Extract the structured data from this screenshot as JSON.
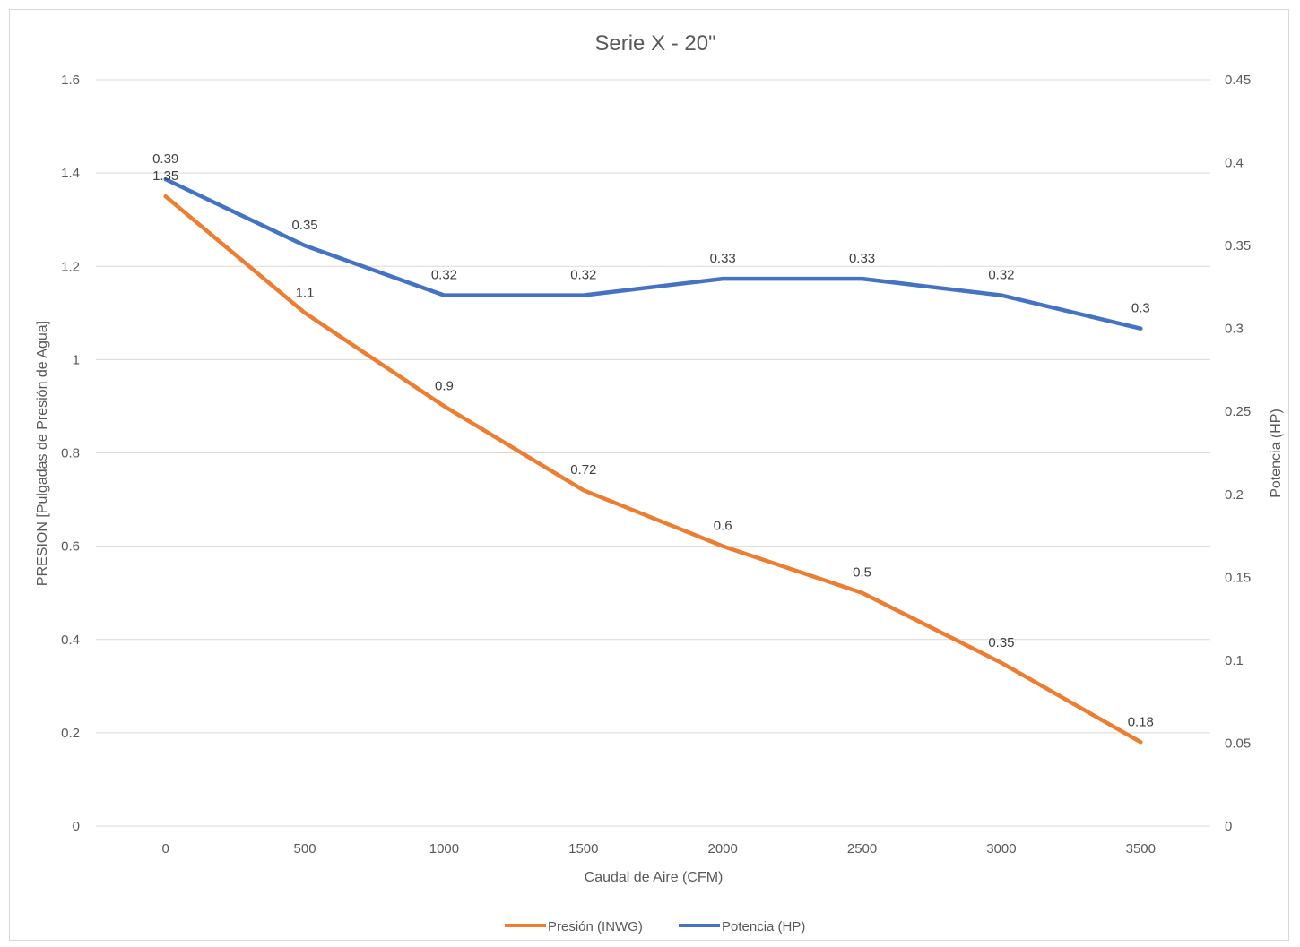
{
  "chart_data": {
    "type": "line",
    "title": "Serie X - 20\"",
    "xlabel": "Caudal de Aire (CFM)",
    "ylabel": "PRESION [Pulgadas de Presión de Agua]",
    "y2label": "Potencia (HP)",
    "categories": [
      "0",
      "500",
      "1000",
      "1500",
      "2000",
      "2500",
      "3000",
      "3500"
    ],
    "ylim": [
      0,
      1.6
    ],
    "yticks": [
      "0",
      "0.2",
      "0.4",
      "0.6",
      "0.8",
      "1",
      "1.2",
      "1.4",
      "1.6"
    ],
    "y2lim": [
      0,
      0.45
    ],
    "y2ticks": [
      "0",
      "0.05",
      "0.1",
      "0.15",
      "0.2",
      "0.25",
      "0.3",
      "0.35",
      "0.4",
      "0.45"
    ],
    "grid": true,
    "legend_position": "bottom",
    "series": [
      {
        "name": "Presión (INWG)",
        "axis": "left",
        "color": "#ED7D31",
        "values": [
          1.35,
          1.1,
          0.9,
          0.72,
          0.6,
          0.5,
          0.35,
          0.18
        ],
        "labels": [
          "1.35",
          "1.1",
          "0.9",
          "0.72",
          "0.6",
          "0.5",
          "0.35",
          "0.18"
        ]
      },
      {
        "name": "Potencia (HP)",
        "axis": "right",
        "color": "#4472C4",
        "values": [
          0.39,
          0.35,
          0.32,
          0.32,
          0.33,
          0.33,
          0.32,
          0.3
        ],
        "labels": [
          "0.39",
          "0.35",
          "0.32",
          "0.32",
          "0.33",
          "0.33",
          "0.32",
          "0.3"
        ]
      }
    ]
  }
}
